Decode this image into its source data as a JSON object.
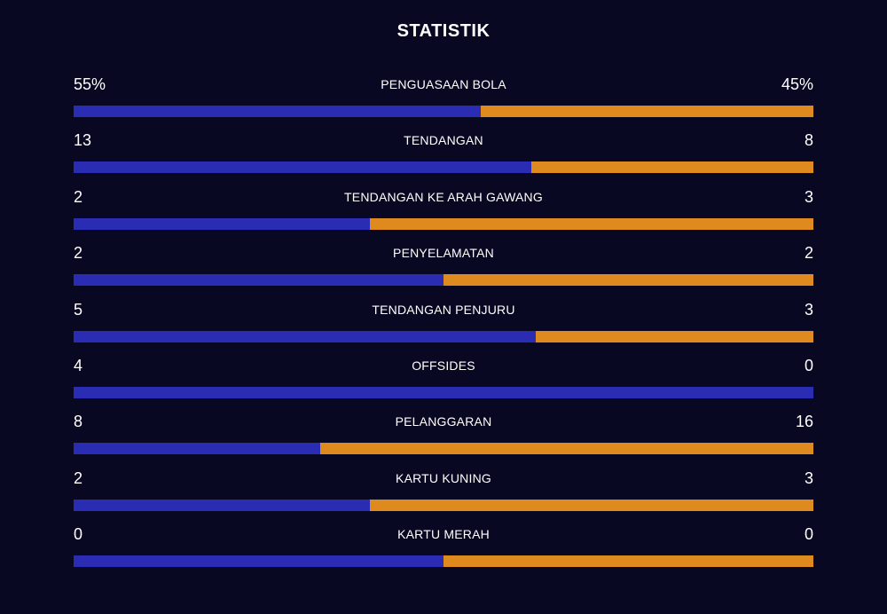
{
  "title": "STATISTIK",
  "colors": {
    "background": "#090822",
    "home": "#2a2db3",
    "away": "#df8a1e",
    "text": "#ffffff"
  },
  "stats": [
    {
      "label": "PENGUASAAN BOLA",
      "home": "55%",
      "away": "45%",
      "home_share": 0.55
    },
    {
      "label": "TENDANGAN",
      "home": "13",
      "away": "8",
      "home_share": 0.619
    },
    {
      "label": "TENDANGAN KE ARAH GAWANG",
      "home": "2",
      "away": "3",
      "home_share": 0.4
    },
    {
      "label": "PENYELAMATAN",
      "home": "2",
      "away": "2",
      "home_share": 0.5
    },
    {
      "label": "TENDANGAN PENJURU",
      "home": "5",
      "away": "3",
      "home_share": 0.625
    },
    {
      "label": "OFFSIDES",
      "home": "4",
      "away": "0",
      "home_share": 1.0
    },
    {
      "label": "PELANGGARAN",
      "home": "8",
      "away": "16",
      "home_share": 0.333
    },
    {
      "label": "KARTU KUNING",
      "home": "2",
      "away": "3",
      "home_share": 0.4
    },
    {
      "label": "KARTU MERAH",
      "home": "0",
      "away": "0",
      "home_share": 0.5
    }
  ]
}
